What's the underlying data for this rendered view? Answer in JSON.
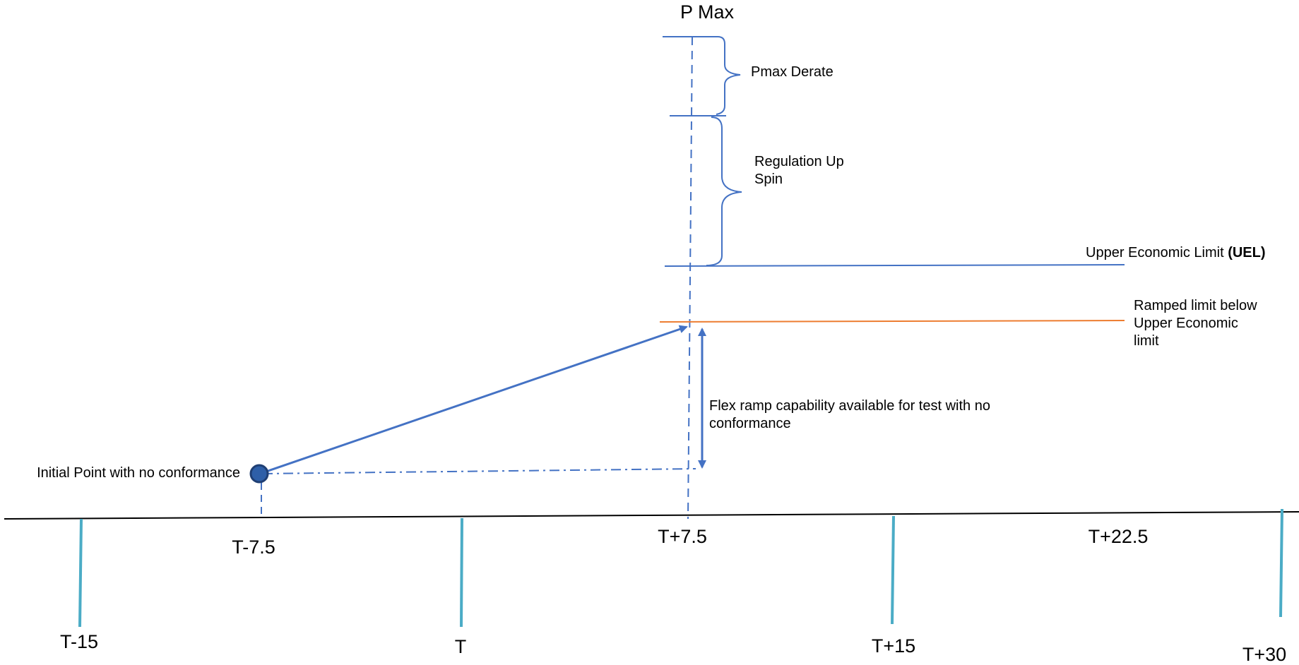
{
  "title": "P Max",
  "labels": {
    "pmax_derate": "Pmax Derate",
    "regulation_line1": "Regulation Up",
    "regulation_line2": "Spin",
    "uel_text": "Upper Economic Limit ",
    "uel_bold": "(UEL)",
    "ramped_line1": "Ramped limit below",
    "ramped_line2": "Upper Economic",
    "ramped_line3": "limit",
    "flex_line1": "Flex ramp capability available for test with no",
    "flex_line2": "conformance",
    "initial_point": "Initial Point with no conformance"
  },
  "timeline": {
    "major_ticks": [
      "T-15",
      "T",
      "T+15",
      "T+30"
    ],
    "half_ticks": [
      "T-7.5",
      "T+7.5",
      "T+22.5"
    ]
  },
  "colors": {
    "blue": "#4472C4",
    "orange": "#ED7D31",
    "teal": "#4BACC6",
    "axis": "#000000",
    "point_fill": "#2E5FA8",
    "point_stroke": "#1F3F74"
  }
}
